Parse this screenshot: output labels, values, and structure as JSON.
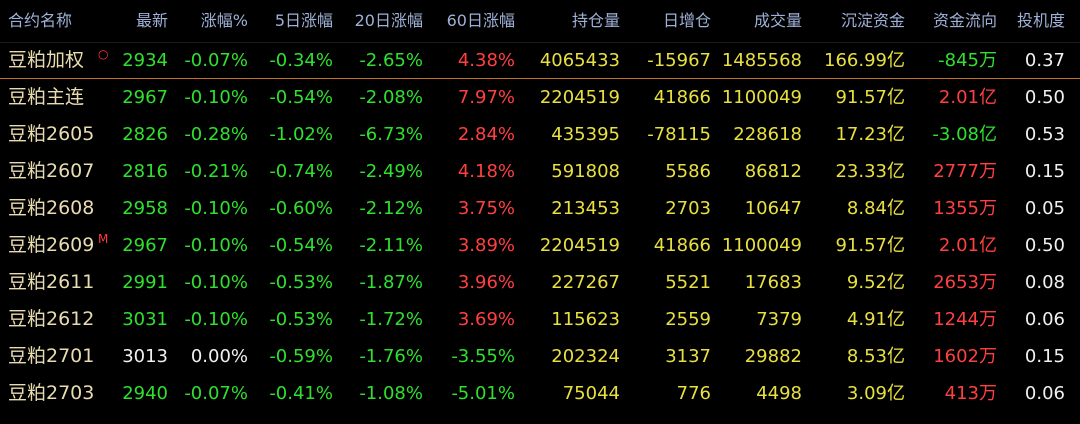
{
  "table": {
    "headers": [
      "合约名称",
      "最新",
      "涨幅%",
      "5日涨幅",
      "20日涨幅",
      "60日涨幅",
      "持仓量",
      "日增仓",
      "成交量",
      "沉淀资金",
      "资金流向",
      "投机度"
    ],
    "rows": [
      {
        "cells": [
          "豆粕加权",
          "2934",
          "-0.07%",
          "-0.34%",
          "-2.65%",
          "4.38%",
          "4065433",
          "-15967",
          "1485568",
          "166.99亿",
          "-845万",
          "0.37"
        ],
        "tag": "○"
      },
      {
        "cells": [
          "豆粕主连",
          "2967",
          "-0.10%",
          "-0.54%",
          "-2.08%",
          "7.97%",
          "2204519",
          "41866",
          "1100049",
          "91.57亿",
          "2.01亿",
          "0.50"
        ]
      },
      {
        "cells": [
          "豆粕2605",
          "2826",
          "-0.28%",
          "-1.02%",
          "-6.73%",
          "2.84%",
          "435395",
          "-78115",
          "228618",
          "17.23亿",
          "-3.08亿",
          "0.53"
        ]
      },
      {
        "cells": [
          "豆粕2607",
          "2816",
          "-0.21%",
          "-0.74%",
          "-2.49%",
          "4.18%",
          "591808",
          "5586",
          "86812",
          "23.33亿",
          "2777万",
          "0.15"
        ]
      },
      {
        "cells": [
          "豆粕2608",
          "2958",
          "-0.10%",
          "-0.60%",
          "-2.12%",
          "3.75%",
          "213453",
          "2703",
          "10647",
          "8.84亿",
          "1355万",
          "0.05"
        ]
      },
      {
        "cells": [
          "豆粕2609",
          "2967",
          "-0.10%",
          "-0.54%",
          "-2.11%",
          "3.89%",
          "2204519",
          "41866",
          "1100049",
          "91.57亿",
          "2.01亿",
          "0.50"
        ],
        "tag": "M"
      },
      {
        "cells": [
          "豆粕2611",
          "2991",
          "-0.10%",
          "-0.53%",
          "-1.87%",
          "3.96%",
          "227267",
          "5521",
          "17683",
          "9.52亿",
          "2653万",
          "0.08"
        ]
      },
      {
        "cells": [
          "豆粕2612",
          "3031",
          "-0.10%",
          "-0.53%",
          "-1.72%",
          "3.69%",
          "115623",
          "2559",
          "7379",
          "4.91亿",
          "1244万",
          "0.06"
        ]
      },
      {
        "cells": [
          "豆粕2701",
          "3013",
          "0.00%",
          "-0.59%",
          "-1.76%",
          "-3.55%",
          "202324",
          "3137",
          "29882",
          "8.53亿",
          "1602万",
          "0.15"
        ]
      },
      {
        "cells": [
          "豆粕2703",
          "2940",
          "-0.07%",
          "-0.41%",
          "-1.08%",
          "-5.01%",
          "75044",
          "776",
          "4498",
          "3.09亿",
          "413万",
          "0.06"
        ]
      }
    ]
  }
}
